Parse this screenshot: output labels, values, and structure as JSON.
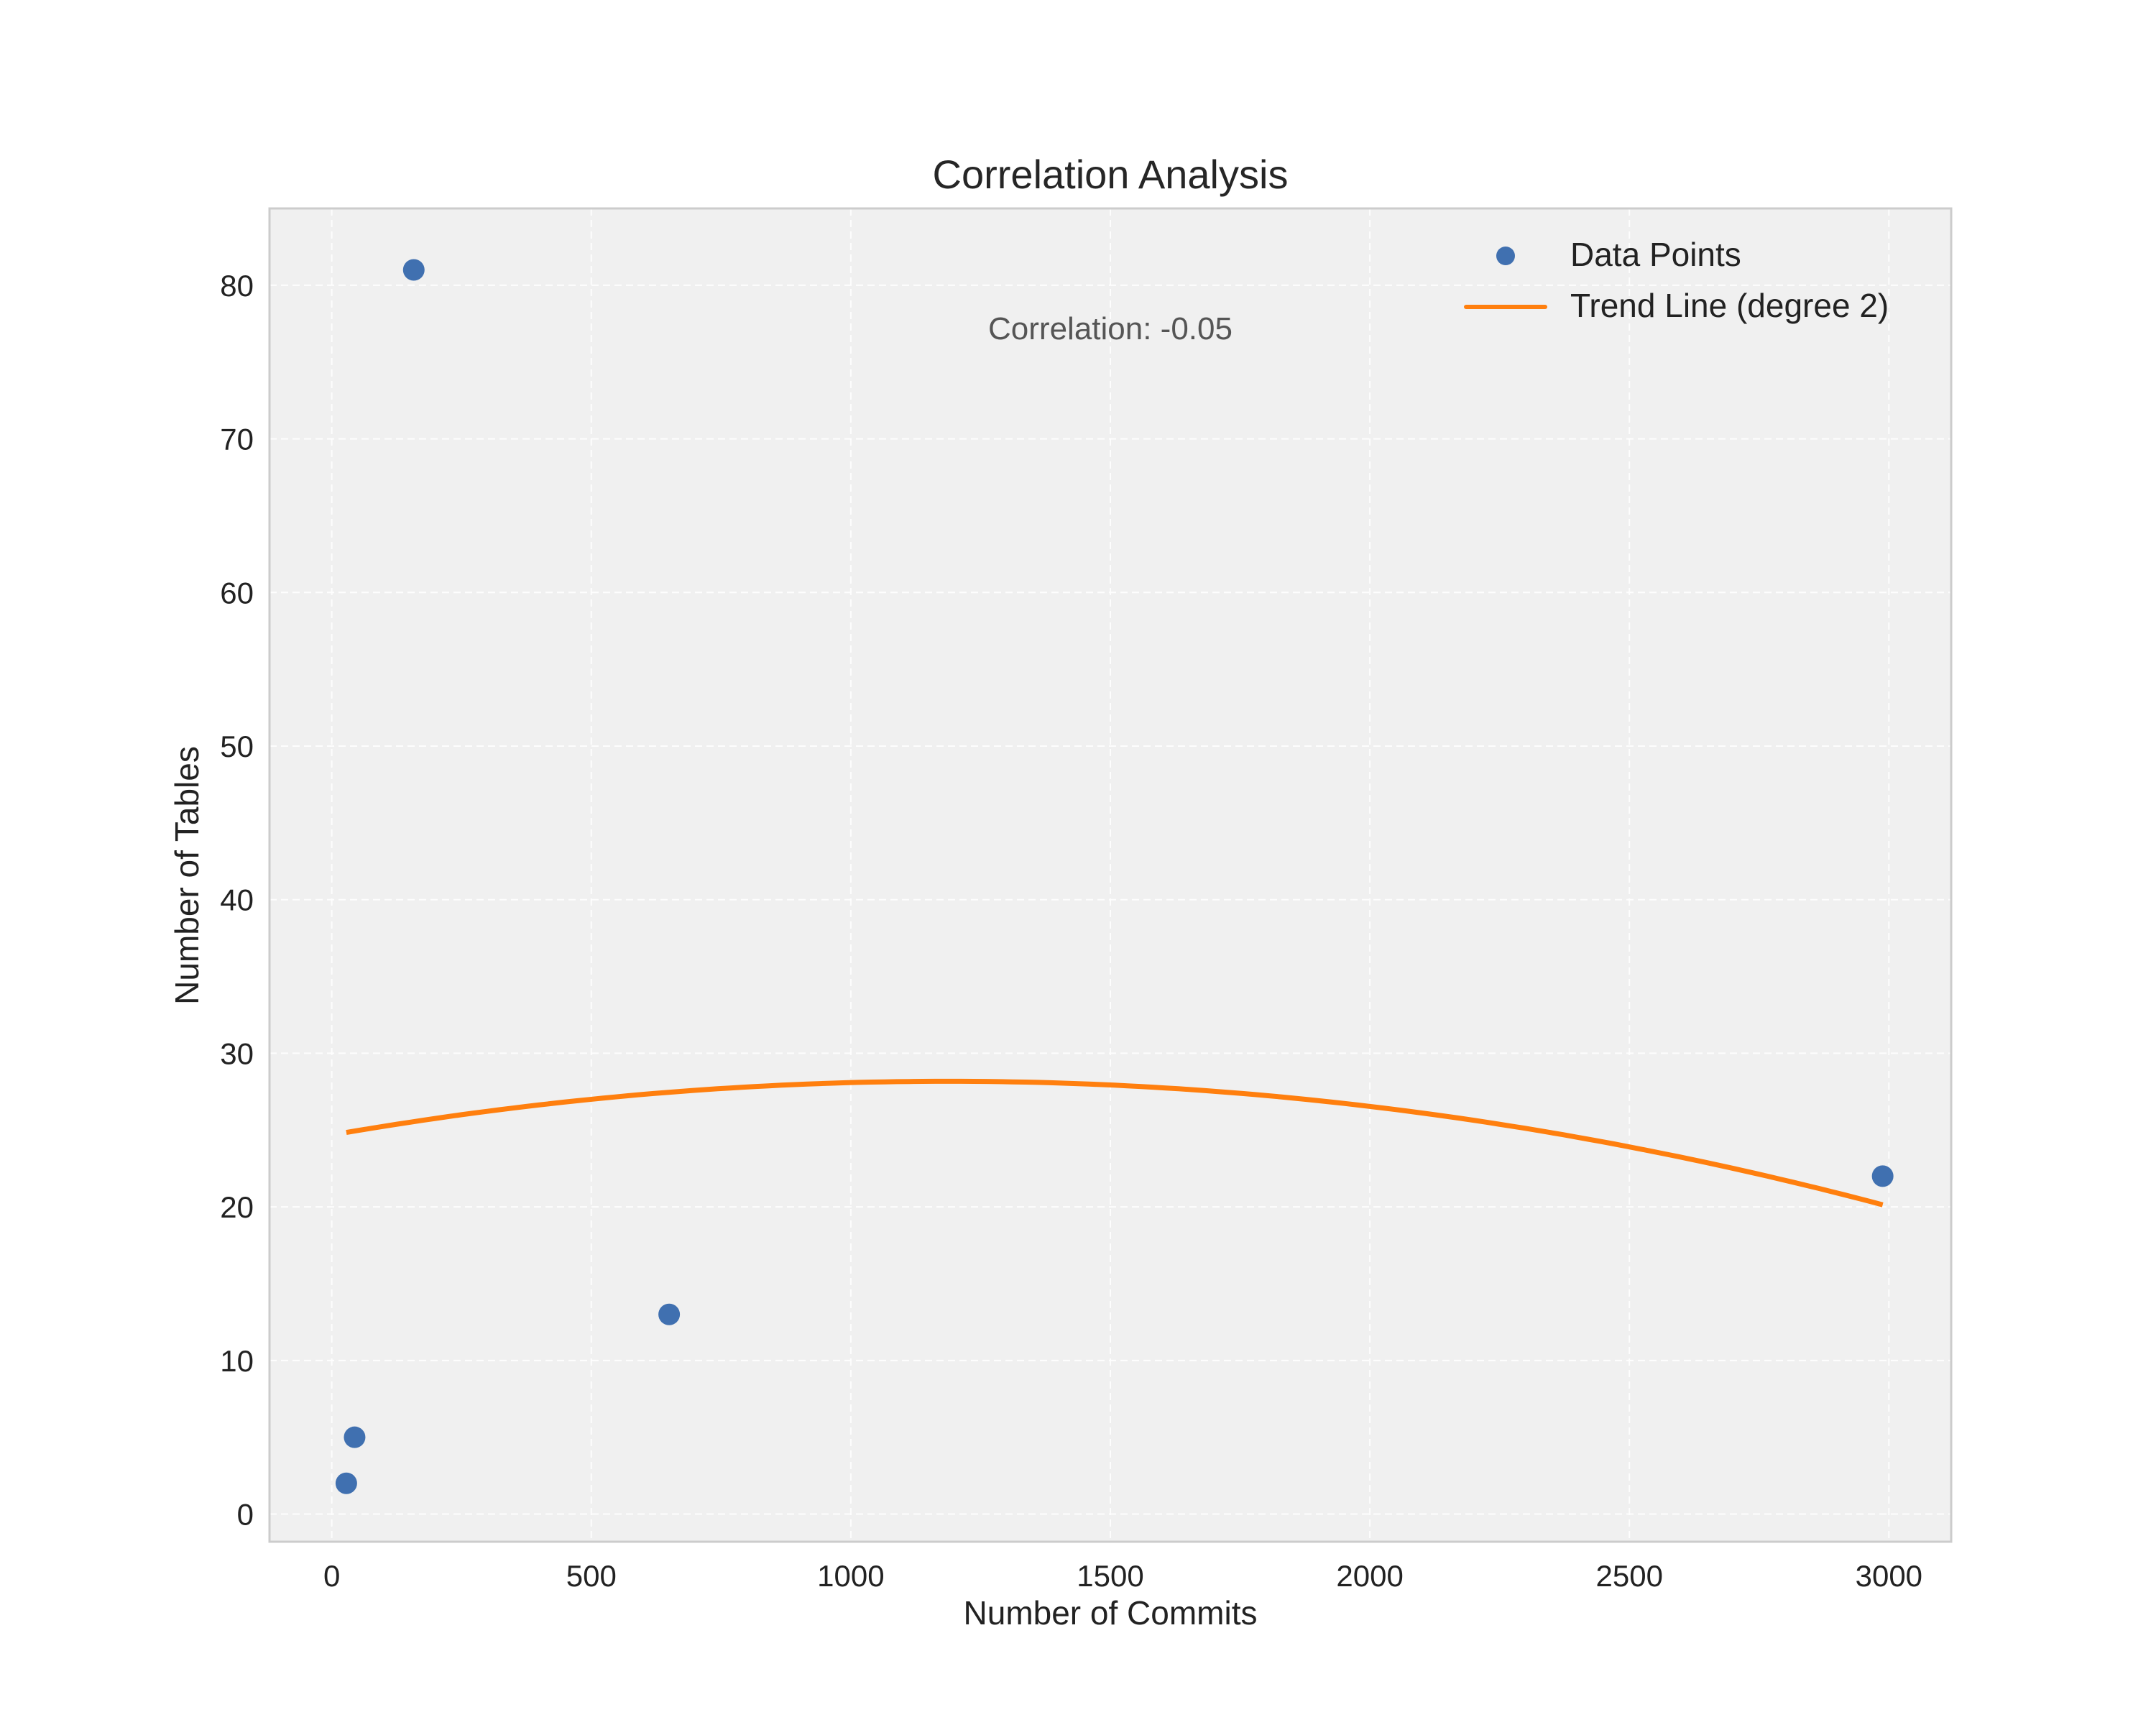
{
  "chart_data": {
    "type": "scatter",
    "title": "Correlation Analysis",
    "xlabel": "Number of Commits",
    "ylabel": "Number of Tables",
    "xlim": [
      -120,
      3120
    ],
    "ylim": [
      -1.8,
      85
    ],
    "xticks": [
      0,
      500,
      1000,
      1500,
      2000,
      2500,
      3000
    ],
    "yticks": [
      0,
      10,
      20,
      30,
      40,
      50,
      60,
      70,
      80
    ],
    "xtick_labels": [
      "0",
      "500",
      "1000",
      "1500",
      "2000",
      "2500",
      "3000"
    ],
    "ytick_labels": [
      "0",
      "10",
      "20",
      "30",
      "40",
      "50",
      "60",
      "70",
      "80"
    ],
    "grid": true,
    "legend_position": "top-right",
    "series": [
      {
        "name": "Data Points",
        "kind": "scatter",
        "color": "#4070b0",
        "x": [
          28,
          44,
          158,
          650,
          2988
        ],
        "y": [
          2,
          5,
          81,
          13,
          22
        ]
      },
      {
        "name": "Trend Line (degree 2)",
        "kind": "line",
        "color": "#ff7f0e",
        "x": [
          28,
          2988
        ],
        "coefficients": {
          "a": -2.48e-06,
          "b": 0.00589,
          "c": 24.68
        }
      }
    ],
    "annotation": "Correlation: -0.05",
    "colors": {
      "plot_background": "#f0f0f0",
      "frame": "#cccccc"
    }
  }
}
